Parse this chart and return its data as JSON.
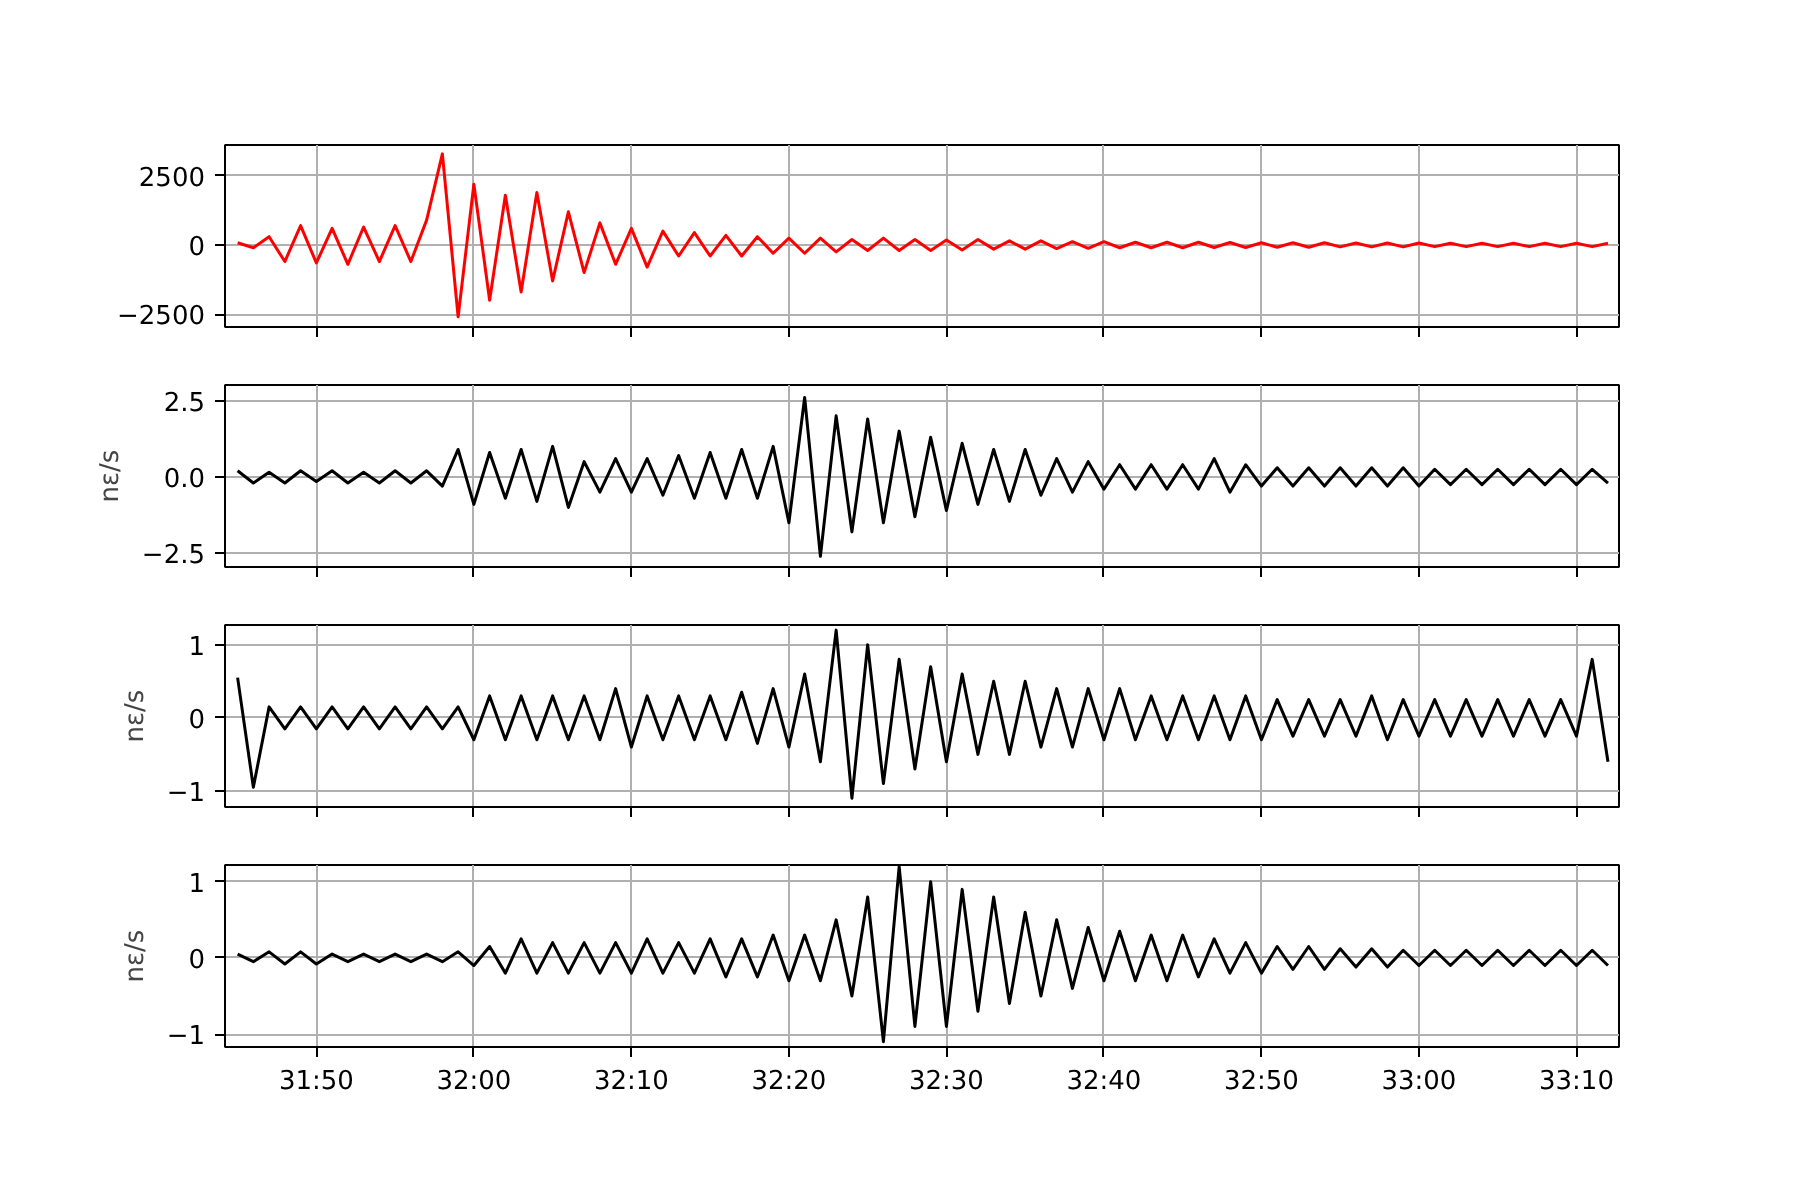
{
  "chart_data": [
    {
      "type": "line",
      "grid": true,
      "tick_labels": "y",
      "xlim": [
        1904.2,
        1992.7
      ],
      "xticks": [
        {
          "value": 1910,
          "label": null
        },
        {
          "value": 1920,
          "label": null
        },
        {
          "value": 1930,
          "label": null
        },
        {
          "value": 1940,
          "label": null
        },
        {
          "value": 1950,
          "label": null
        },
        {
          "value": 1960,
          "label": null
        },
        {
          "value": 1970,
          "label": null
        },
        {
          "value": 1980,
          "label": null
        },
        {
          "value": 1990,
          "label": null
        }
      ],
      "ylim": [
        -2970,
        3620
      ],
      "yticks": [
        {
          "value": -2500,
          "label": "−2500"
        },
        0,
        2500
      ],
      "x": [
        1905,
        1906,
        1907,
        1908,
        1909,
        1910,
        1911,
        1912,
        1913,
        1914,
        1915,
        1916,
        1917,
        1918,
        1919,
        1920,
        1921,
        1922,
        1923,
        1924,
        1925,
        1926,
        1927,
        1928,
        1929,
        1930,
        1931,
        1932,
        1933,
        1934,
        1935,
        1936,
        1937,
        1938,
        1939,
        1940,
        1941,
        1942,
        1943,
        1944,
        1945,
        1946,
        1947,
        1948,
        1949,
        1950,
        1951,
        1952,
        1953,
        1954,
        1955,
        1956,
        1957,
        1958,
        1959,
        1960,
        1961,
        1962,
        1963,
        1964,
        1965,
        1966,
        1967,
        1968,
        1969,
        1970,
        1971,
        1972,
        1973,
        1974,
        1975,
        1976,
        1977,
        1978,
        1979,
        1980,
        1981,
        1982,
        1983,
        1984,
        1985,
        1986,
        1987,
        1988,
        1989,
        1990,
        1991,
        1992
      ],
      "series": [
        {
          "color": "#ff0000",
          "values": [
            80,
            -100,
            300,
            -600,
            700,
            -650,
            600,
            -700,
            650,
            -600,
            700,
            -600,
            900,
            3300,
            -2600,
            2200,
            -2000,
            1800,
            -1700,
            1900,
            -1300,
            1200,
            -1000,
            800,
            -700,
            600,
            -800,
            500,
            -400,
            450,
            -400,
            350,
            -400,
            300,
            -300,
            250,
            -300,
            250,
            -250,
            200,
            -200,
            250,
            -200,
            200,
            -200,
            180,
            -180,
            200,
            -150,
            150,
            -150,
            150,
            -130,
            120,
            -120,
            120,
            -100,
            100,
            -100,
            100,
            -100,
            100,
            -90,
            90,
            -90,
            80,
            -80,
            80,
            -80,
            80,
            -70,
            70,
            -70,
            70,
            -70,
            70,
            -60,
            60,
            -60,
            60,
            -60,
            60,
            -60,
            60,
            -60,
            60,
            -60,
            60
          ]
        }
      ]
    },
    {
      "type": "line",
      "grid": true,
      "tick_labels": "y",
      "ylabel": "nε/s",
      "xlim": [
        1904.2,
        1992.7
      ],
      "xticks": [
        {
          "value": 1910,
          "label": null
        },
        {
          "value": 1920,
          "label": null
        },
        {
          "value": 1930,
          "label": null
        },
        {
          "value": 1940,
          "label": null
        },
        {
          "value": 1950,
          "label": null
        },
        {
          "value": 1960,
          "label": null
        },
        {
          "value": 1970,
          "label": null
        },
        {
          "value": 1980,
          "label": null
        },
        {
          "value": 1990,
          "label": null
        }
      ],
      "ylim": [
        -2.95,
        3.01
      ],
      "yticks": [
        {
          "value": -2.5,
          "label": "−2.5"
        },
        {
          "value": 0,
          "label": "0.0"
        },
        2.5
      ],
      "x": [
        1905,
        1906,
        1907,
        1908,
        1909,
        1910,
        1911,
        1912,
        1913,
        1914,
        1915,
        1916,
        1917,
        1918,
        1919,
        1920,
        1921,
        1922,
        1923,
        1924,
        1925,
        1926,
        1927,
        1928,
        1929,
        1930,
        1931,
        1932,
        1933,
        1934,
        1935,
        1936,
        1937,
        1938,
        1939,
        1940,
        1941,
        1942,
        1943,
        1944,
        1945,
        1946,
        1947,
        1948,
        1949,
        1950,
        1951,
        1952,
        1953,
        1954,
        1955,
        1956,
        1957,
        1958,
        1959,
        1960,
        1961,
        1962,
        1963,
        1964,
        1965,
        1966,
        1967,
        1968,
        1969,
        1970,
        1971,
        1972,
        1973,
        1974,
        1975,
        1976,
        1977,
        1978,
        1979,
        1980,
        1981,
        1982,
        1983,
        1984,
        1985,
        1986,
        1987,
        1988,
        1989,
        1990,
        1991,
        1992
      ],
      "series": [
        {
          "color": "#000000",
          "values": [
            0.2,
            -0.2,
            0.15,
            -0.2,
            0.2,
            -0.15,
            0.2,
            -0.2,
            0.15,
            -0.2,
            0.2,
            -0.2,
            0.2,
            -0.3,
            0.9,
            -0.9,
            0.8,
            -0.7,
            0.9,
            -0.8,
            1.0,
            -1.0,
            0.5,
            -0.5,
            0.6,
            -0.5,
            0.6,
            -0.6,
            0.7,
            -0.7,
            0.8,
            -0.7,
            0.9,
            -0.7,
            1.0,
            -1.5,
            2.6,
            -2.6,
            2.0,
            -1.8,
            1.9,
            -1.5,
            1.5,
            -1.3,
            1.3,
            -1.1,
            1.1,
            -0.9,
            0.9,
            -0.8,
            0.9,
            -0.6,
            0.6,
            -0.5,
            0.5,
            -0.4,
            0.4,
            -0.4,
            0.4,
            -0.4,
            0.4,
            -0.4,
            0.6,
            -0.5,
            0.4,
            -0.3,
            0.3,
            -0.3,
            0.3,
            -0.3,
            0.3,
            -0.3,
            0.3,
            -0.3,
            0.3,
            -0.3,
            0.25,
            -0.25,
            0.25,
            -0.25,
            0.25,
            -0.25,
            0.25,
            -0.25,
            0.25,
            -0.25,
            0.25,
            -0.2
          ]
        }
      ]
    },
    {
      "type": "line",
      "grid": true,
      "tick_labels": "y",
      "ylabel": "nε/s",
      "xlim": [
        1904.2,
        1992.7
      ],
      "xticks": [
        {
          "value": 1910,
          "label": null
        },
        {
          "value": 1920,
          "label": null
        },
        {
          "value": 1930,
          "label": null
        },
        {
          "value": 1940,
          "label": null
        },
        {
          "value": 1950,
          "label": null
        },
        {
          "value": 1960,
          "label": null
        },
        {
          "value": 1970,
          "label": null
        },
        {
          "value": 1980,
          "label": null
        },
        {
          "value": 1990,
          "label": null
        }
      ],
      "ylim": [
        -1.22,
        1.27
      ],
      "yticks": [
        {
          "value": -1,
          "label": "−1"
        },
        0,
        1
      ],
      "x": [
        1905,
        1906,
        1907,
        1908,
        1909,
        1910,
        1911,
        1912,
        1913,
        1914,
        1915,
        1916,
        1917,
        1918,
        1919,
        1920,
        1921,
        1922,
        1923,
        1924,
        1925,
        1926,
        1927,
        1928,
        1929,
        1930,
        1931,
        1932,
        1933,
        1934,
        1935,
        1936,
        1937,
        1938,
        1939,
        1940,
        1941,
        1942,
        1943,
        1944,
        1945,
        1946,
        1947,
        1948,
        1949,
        1950,
        1951,
        1952,
        1953,
        1954,
        1955,
        1956,
        1957,
        1958,
        1959,
        1960,
        1961,
        1962,
        1963,
        1964,
        1965,
        1966,
        1967,
        1968,
        1969,
        1970,
        1971,
        1972,
        1973,
        1974,
        1975,
        1976,
        1977,
        1978,
        1979,
        1980,
        1981,
        1982,
        1983,
        1984,
        1985,
        1986,
        1987,
        1988,
        1989,
        1990,
        1991,
        1992
      ],
      "series": [
        {
          "color": "#000000",
          "values": [
            0.55,
            -0.95,
            0.15,
            -0.15,
            0.15,
            -0.15,
            0.15,
            -0.15,
            0.15,
            -0.15,
            0.15,
            -0.15,
            0.15,
            -0.15,
            0.15,
            -0.3,
            0.3,
            -0.3,
            0.3,
            -0.3,
            0.3,
            -0.3,
            0.3,
            -0.3,
            0.4,
            -0.4,
            0.3,
            -0.3,
            0.3,
            -0.3,
            0.3,
            -0.3,
            0.35,
            -0.35,
            0.4,
            -0.4,
            0.6,
            -0.6,
            1.2,
            -1.1,
            1.0,
            -0.9,
            0.8,
            -0.7,
            0.7,
            -0.6,
            0.6,
            -0.5,
            0.5,
            -0.5,
            0.5,
            -0.4,
            0.4,
            -0.4,
            0.4,
            -0.3,
            0.4,
            -0.3,
            0.3,
            -0.3,
            0.3,
            -0.3,
            0.3,
            -0.3,
            0.3,
            -0.3,
            0.25,
            -0.25,
            0.25,
            -0.25,
            0.25,
            -0.25,
            0.3,
            -0.3,
            0.25,
            -0.25,
            0.25,
            -0.25,
            0.25,
            -0.25,
            0.25,
            -0.25,
            0.25,
            -0.25,
            0.25,
            -0.25,
            0.8,
            -0.6
          ]
        }
      ]
    },
    {
      "type": "line",
      "grid": true,
      "ylabel": "nε/s",
      "xlim": [
        1904.2,
        1992.7
      ],
      "xticks": [
        {
          "value": 1910,
          "label": "31:50"
        },
        {
          "value": 1920,
          "label": "32:00"
        },
        {
          "value": 1930,
          "label": "32:10"
        },
        {
          "value": 1940,
          "label": "32:20"
        },
        {
          "value": 1950,
          "label": "32:30"
        },
        {
          "value": 1960,
          "label": "32:40"
        },
        {
          "value": 1970,
          "label": "32:50"
        },
        {
          "value": 1980,
          "label": "33:00"
        },
        {
          "value": 1990,
          "label": "33:10"
        }
      ],
      "ylim": [
        -1.17,
        1.22
      ],
      "yticks": [
        {
          "value": -1,
          "label": "−1"
        },
        0,
        1
      ],
      "x": [
        1905,
        1906,
        1907,
        1908,
        1909,
        1910,
        1911,
        1912,
        1913,
        1914,
        1915,
        1916,
        1917,
        1918,
        1919,
        1920,
        1921,
        1922,
        1923,
        1924,
        1925,
        1926,
        1927,
        1928,
        1929,
        1930,
        1931,
        1932,
        1933,
        1934,
        1935,
        1936,
        1937,
        1938,
        1939,
        1940,
        1941,
        1942,
        1943,
        1944,
        1945,
        1946,
        1947,
        1948,
        1949,
        1950,
        1951,
        1952,
        1953,
        1954,
        1955,
        1956,
        1957,
        1958,
        1959,
        1960,
        1961,
        1962,
        1963,
        1964,
        1965,
        1966,
        1967,
        1968,
        1969,
        1970,
        1971,
        1972,
        1973,
        1974,
        1975,
        1976,
        1977,
        1978,
        1979,
        1980,
        1981,
        1982,
        1983,
        1984,
        1985,
        1986,
        1987,
        1988,
        1989,
        1990,
        1991,
        1992
      ],
      "series": [
        {
          "color": "#000000",
          "values": [
            0.05,
            -0.05,
            0.08,
            -0.08,
            0.08,
            -0.08,
            0.05,
            -0.05,
            0.05,
            -0.05,
            0.05,
            -0.05,
            0.05,
            -0.05,
            0.08,
            -0.1,
            0.15,
            -0.2,
            0.25,
            -0.2,
            0.2,
            -0.2,
            0.2,
            -0.2,
            0.2,
            -0.2,
            0.25,
            -0.2,
            0.2,
            -0.2,
            0.25,
            -0.25,
            0.25,
            -0.25,
            0.3,
            -0.3,
            0.3,
            -0.3,
            0.5,
            -0.5,
            0.8,
            -1.1,
            1.2,
            -0.9,
            1.0,
            -0.9,
            0.9,
            -0.7,
            0.8,
            -0.6,
            0.6,
            -0.5,
            0.5,
            -0.4,
            0.4,
            -0.3,
            0.35,
            -0.3,
            0.3,
            -0.3,
            0.3,
            -0.25,
            0.25,
            -0.2,
            0.2,
            -0.2,
            0.15,
            -0.15,
            0.15,
            -0.15,
            0.12,
            -0.12,
            0.12,
            -0.12,
            0.1,
            -0.1,
            0.1,
            -0.1,
            0.1,
            -0.1,
            0.1,
            -0.1,
            0.1,
            -0.1,
            0.1,
            -0.1,
            0.1,
            -0.1
          ]
        }
      ]
    }
  ]
}
